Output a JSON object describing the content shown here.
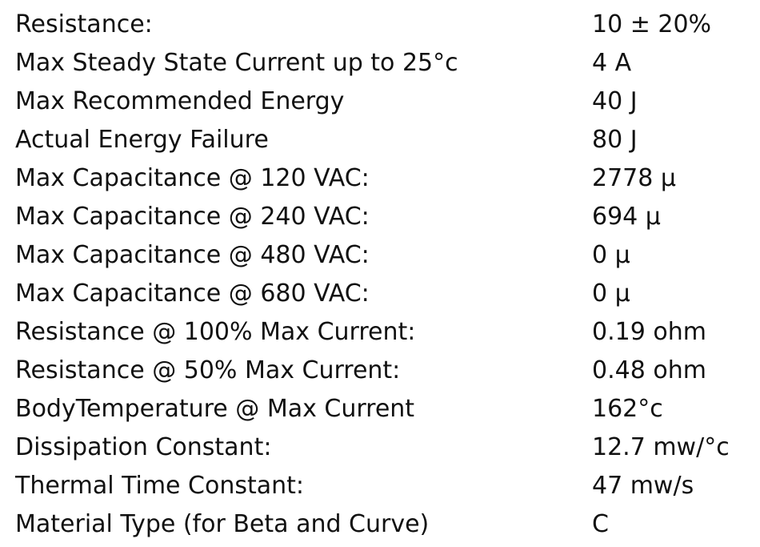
{
  "specs": [
    {
      "label": "Resistance:",
      "value": "10 ± 20%"
    },
    {
      "label": "Max Steady State Current up to 25°c",
      "value": "4 A"
    },
    {
      "label": "Max Recommended Energy",
      "value": "40 J"
    },
    {
      "label": "Actual Energy Failure",
      "value": "80 J"
    },
    {
      "label": "Max Capacitance @ 120 VAC:",
      "value": "2778 μ"
    },
    {
      "label": "Max Capacitance @ 240 VAC:",
      "value": "694 μ"
    },
    {
      "label": "Max Capacitance @ 480 VAC:",
      "value": "0 μ"
    },
    {
      "label": "Max Capacitance @ 680 VAC:",
      "value": "0 μ"
    },
    {
      "label": "Resistance @ 100% Max Current:",
      "value": "0.19 ohm"
    },
    {
      "label": "Resistance @ 50% Max Current:",
      "value": "0.48 ohm"
    },
    {
      "label": "BodyTemperature @ Max Current",
      "value": "162°c"
    },
    {
      "label": "Dissipation Constant:",
      "value": "12.7 mw/°c"
    },
    {
      "label": "Thermal Time Constant:",
      "value": "47 mw/s"
    },
    {
      "label": "Material Type (for Beta and Curve)",
      "value": "C"
    }
  ]
}
